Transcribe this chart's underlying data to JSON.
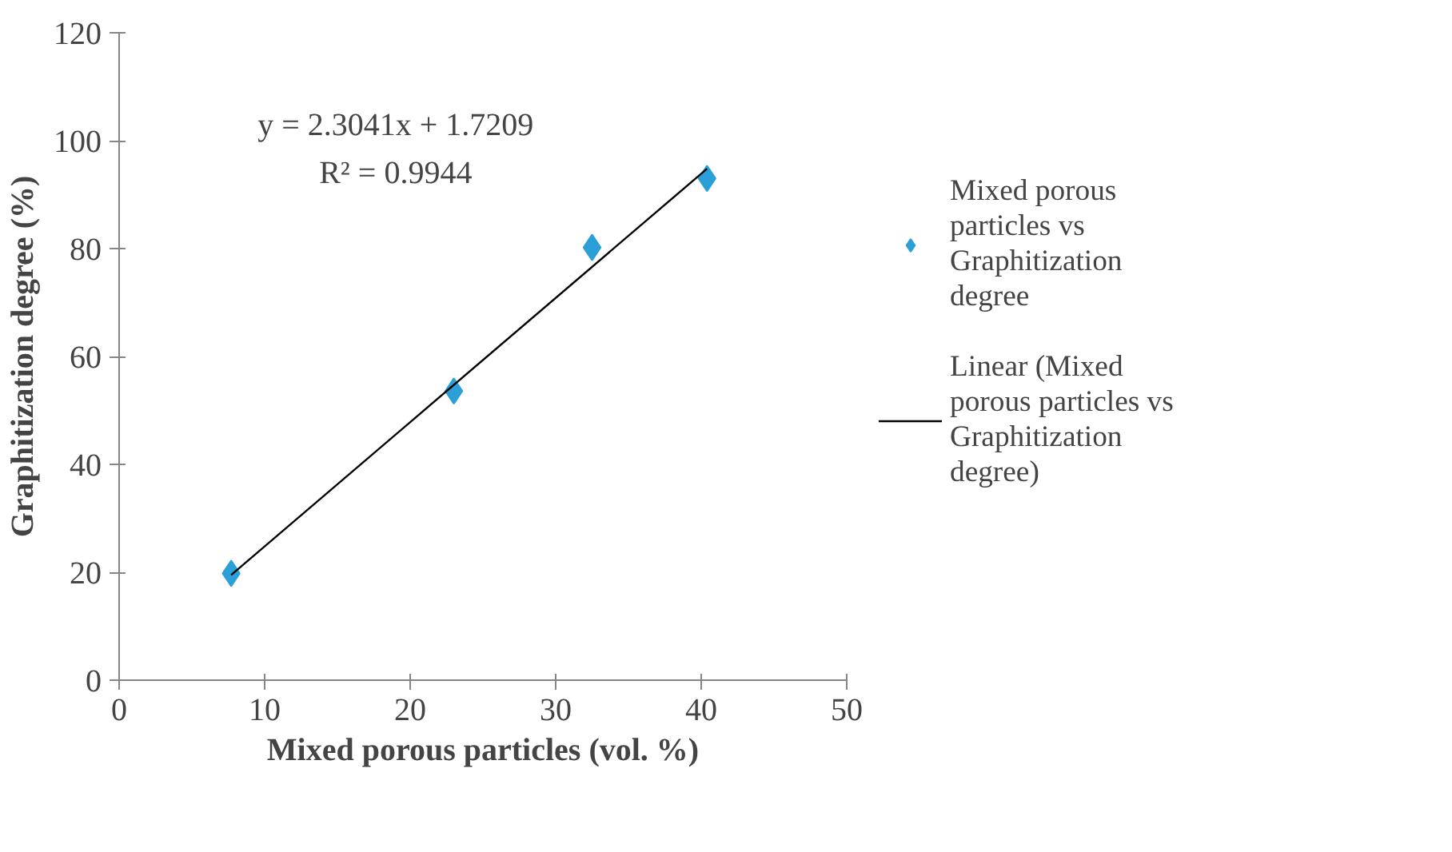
{
  "chart_data": {
    "type": "scatter",
    "xlabel": "Mixed porous particles (vol. %)",
    "ylabel": "Graphitization degree (%)",
    "xlim": [
      0,
      50
    ],
    "ylim": [
      0,
      120
    ],
    "xticks": [
      0,
      10,
      20,
      30,
      40,
      50
    ],
    "yticks": [
      0,
      20,
      40,
      60,
      80,
      100,
      120
    ],
    "legend": "right",
    "annotations": [
      "y = 2.3041x + 1.7209",
      "R² = 0.9944"
    ],
    "series": [
      {
        "name": "Mixed porous particles vs Graphitization degree",
        "marker": "diamond",
        "color": "#2a9fd8",
        "x": [
          7.7,
          23.0,
          32.5,
          40.4
        ],
        "values": [
          19.8,
          53.6,
          80.2,
          93.0
        ]
      },
      {
        "type": "line",
        "name": "Linear (Mixed porous particles vs Graphitization degree)",
        "color": "#000000",
        "x": [
          7.7,
          40.4
        ],
        "values": [
          19.5,
          94.8
        ],
        "line_style": "solid"
      }
    ]
  }
}
